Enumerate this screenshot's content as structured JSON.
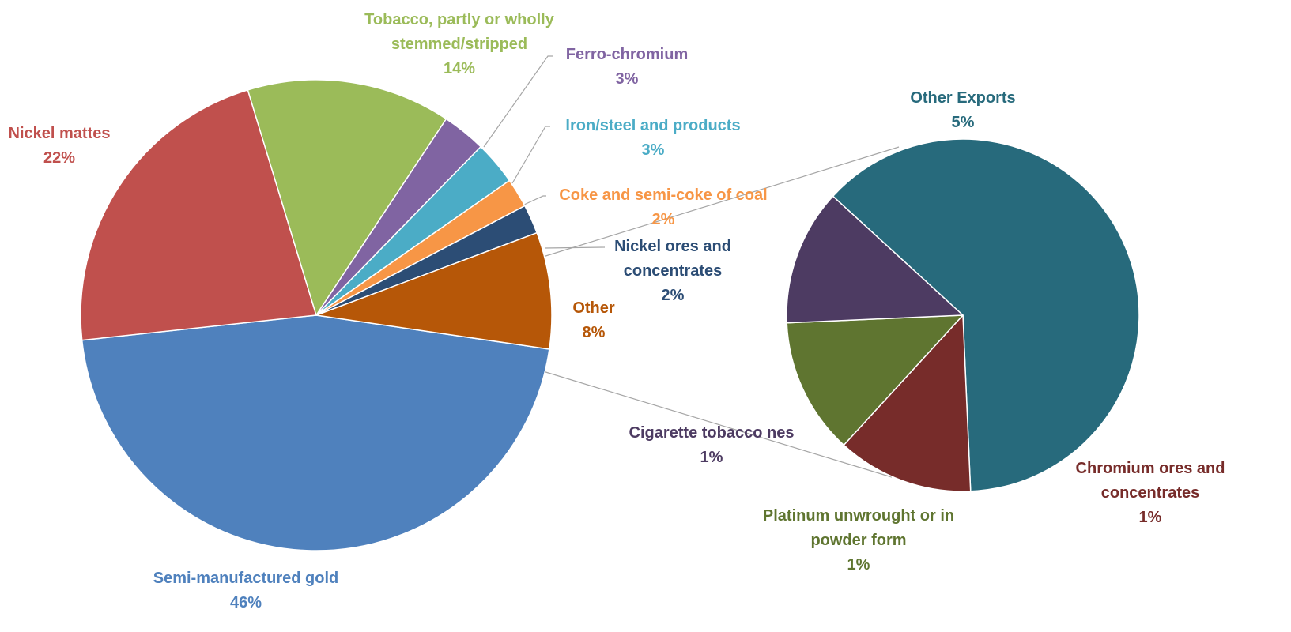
{
  "chart_data": [
    {
      "type": "pie",
      "slices": [
        {
          "name": "Semi-manufactured gold",
          "value": 46,
          "value_label": "46%",
          "color": "#4F81BD"
        },
        {
          "name": "Nickel mattes",
          "value": 22,
          "value_label": "22%",
          "color": "#C0504D"
        },
        {
          "name": "Tobacco, partly or wholly stemmed/stripped",
          "value": 14,
          "value_label": "14%",
          "color": "#9BBB59"
        },
        {
          "name": "Ferro-chromium",
          "value": 3,
          "value_label": "3%",
          "color": "#8064A2"
        },
        {
          "name": "Iron/steel and products",
          "value": 3,
          "value_label": "3%",
          "color": "#4BACC6"
        },
        {
          "name": "Coke and semi-coke of coal",
          "value": 2,
          "value_label": "2%",
          "color": "#F79646"
        },
        {
          "name": "Nickel ores and concentrates",
          "value": 2,
          "value_label": "2%",
          "color": "#2C4D75"
        },
        {
          "name": "Other",
          "value": 8,
          "value_label": "8%",
          "color": "#B65708"
        }
      ]
    },
    {
      "type": "pie",
      "slices": [
        {
          "name": "Other Exports",
          "value": 5,
          "value_label": "5%",
          "color": "#276A7C"
        },
        {
          "name": "Chromium ores and concentrates",
          "value": 1,
          "value_label": "1%",
          "color": "#772C2A"
        },
        {
          "name": "Platinum unwrought or in powder form",
          "value": 1,
          "value_label": "1%",
          "color": "#5F7530"
        },
        {
          "name": "Cigarette tobacco nes",
          "value": 1,
          "value_label": "1%",
          "color": "#4D3B62"
        }
      ]
    }
  ]
}
